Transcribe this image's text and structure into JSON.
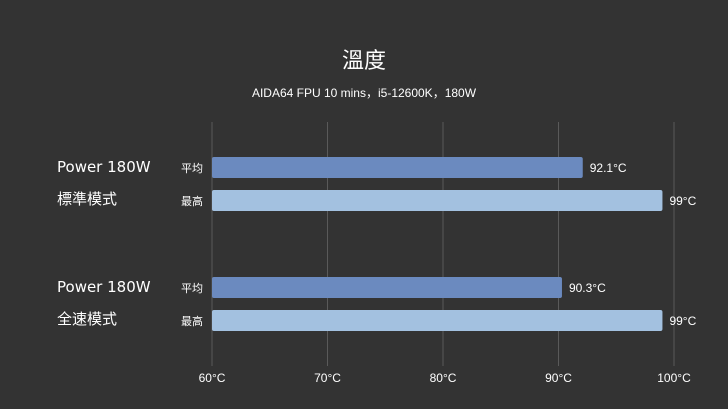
{
  "chart_data": {
    "type": "bar",
    "orientation": "horizontal",
    "title": "溫度",
    "subtitle": "AIDA64 FPU 10 mins，i5-12600K，180W",
    "xlim": [
      60,
      100
    ],
    "xticks": [
      60,
      70,
      80,
      90,
      100
    ],
    "tick_suffix": "°C",
    "grid": true,
    "groups": [
      {
        "label_line1": "Power 180W",
        "label_line2": "標準模式",
        "bars": [
          {
            "series": "平均",
            "value": 92.1,
            "label": "92.1°C"
          },
          {
            "series": "最高",
            "value": 99,
            "label": "99°C"
          }
        ]
      },
      {
        "label_line1": "Power 180W",
        "label_line2": "全速模式",
        "bars": [
          {
            "series": "平均",
            "value": 90.3,
            "label": "90.3°C"
          },
          {
            "series": "最高",
            "value": 99,
            "label": "99°C"
          }
        ]
      }
    ],
    "colors": {
      "平均": "#6b8abf",
      "最高": "#a3c1e0"
    }
  }
}
